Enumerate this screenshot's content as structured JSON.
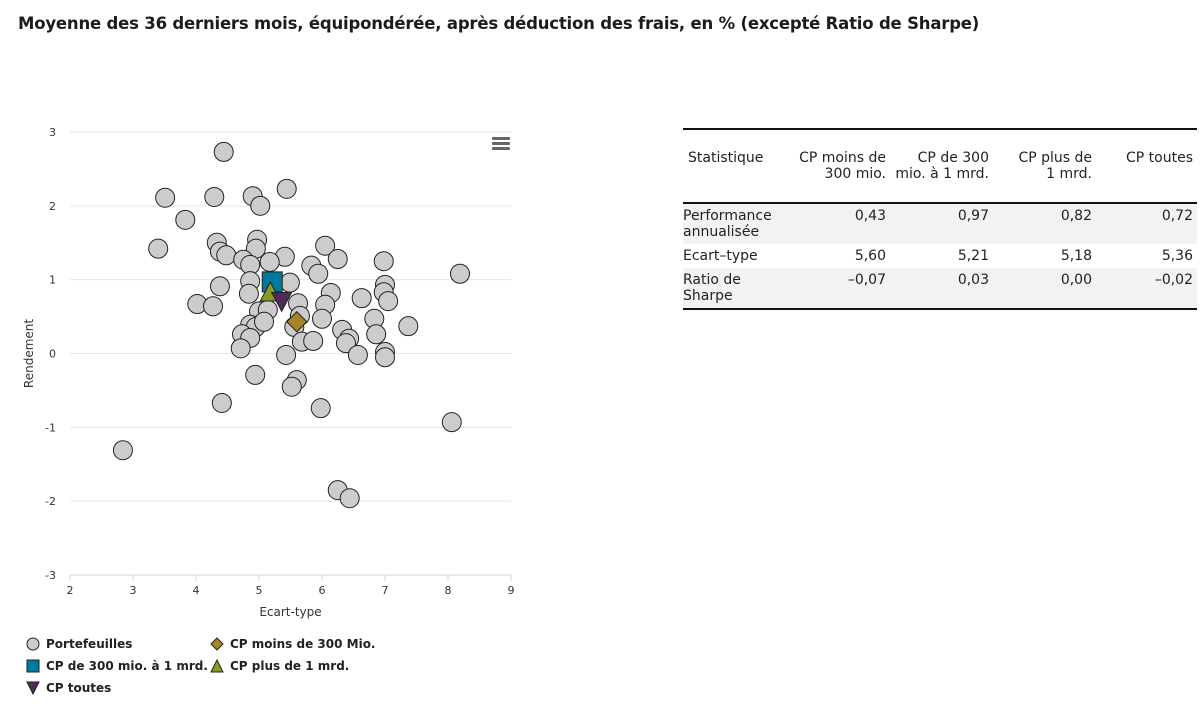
{
  "title": "Moyenne des 36 derniers mois, équipondérée, après déduction des frais, en % (excepté Ratio de Sharpe)",
  "chart_data": {
    "type": "scatter",
    "xlabel": "Ecart-type",
    "ylabel": "Rendement",
    "xlim": [
      2,
      9
    ],
    "ylim": [
      -3,
      3
    ],
    "xticks": [
      "2",
      "3",
      "4",
      "5",
      "6",
      "7",
      "8",
      "9"
    ],
    "yticks": [
      "3",
      "2",
      "1",
      "0",
      "-1",
      "-2",
      "-3"
    ],
    "grid": true,
    "legend_position": "bottom-left",
    "series": [
      {
        "name": "Portefeuilles",
        "marker": "circle",
        "color": "#cccccc",
        "points": [
          [
            4.44,
            2.73
          ],
          [
            3.51,
            2.11
          ],
          [
            4.29,
            2.12
          ],
          [
            4.9,
            2.13
          ],
          [
            5.44,
            2.23
          ],
          [
            5.02,
            2.0
          ],
          [
            3.83,
            1.81
          ],
          [
            3.4,
            1.42
          ],
          [
            4.33,
            1.5
          ],
          [
            4.97,
            1.54
          ],
          [
            4.38,
            1.38
          ],
          [
            4.48,
            1.33
          ],
          [
            4.95,
            1.42
          ],
          [
            4.75,
            1.27
          ],
          [
            5.41,
            1.31
          ],
          [
            6.05,
            1.46
          ],
          [
            6.25,
            1.28
          ],
          [
            5.17,
            1.24
          ],
          [
            4.86,
            1.2
          ],
          [
            5.83,
            1.19
          ],
          [
            5.94,
            1.08
          ],
          [
            6.98,
            1.25
          ],
          [
            8.19,
            1.08
          ],
          [
            4.86,
            0.98
          ],
          [
            5.49,
            0.96
          ],
          [
            4.38,
            0.91
          ],
          [
            4.02,
            0.67
          ],
          [
            4.27,
            0.64
          ],
          [
            4.84,
            0.81
          ],
          [
            7.0,
            0.93
          ],
          [
            6.98,
            0.83
          ],
          [
            6.14,
            0.82
          ],
          [
            6.63,
            0.75
          ],
          [
            7.05,
            0.71
          ],
          [
            6.05,
            0.66
          ],
          [
            5.62,
            0.68
          ],
          [
            5.0,
            0.57
          ],
          [
            5.14,
            0.59
          ],
          [
            5.65,
            0.51
          ],
          [
            6.83,
            0.47
          ],
          [
            6.0,
            0.47
          ],
          [
            7.37,
            0.37
          ],
          [
            4.86,
            0.39
          ],
          [
            4.95,
            0.36
          ],
          [
            5.08,
            0.43
          ],
          [
            5.56,
            0.36
          ],
          [
            6.32,
            0.32
          ],
          [
            6.43,
            0.2
          ],
          [
            4.73,
            0.26
          ],
          [
            4.86,
            0.21
          ],
          [
            6.86,
            0.26
          ],
          [
            5.68,
            0.16
          ],
          [
            5.86,
            0.17
          ],
          [
            6.38,
            0.14
          ],
          [
            4.71,
            0.07
          ],
          [
            6.57,
            -0.02
          ],
          [
            7.0,
            0.02
          ],
          [
            7.0,
            -0.05
          ],
          [
            5.43,
            -0.02
          ],
          [
            4.94,
            -0.29
          ],
          [
            5.6,
            -0.36
          ],
          [
            5.52,
            -0.45
          ],
          [
            4.41,
            -0.67
          ],
          [
            5.98,
            -0.74
          ],
          [
            8.06,
            -0.93
          ],
          [
            2.84,
            -1.31
          ],
          [
            6.25,
            -1.85
          ],
          [
            6.44,
            -1.96
          ]
        ]
      },
      {
        "name": "CP moins de 300 Mio.",
        "marker": "diamond",
        "color": "#a8842a",
        "points": [
          [
            5.6,
            0.43
          ]
        ]
      },
      {
        "name": "CP de 300 mio. à 1 mrd.",
        "marker": "square",
        "color": "#00799e",
        "points": [
          [
            5.21,
            0.97
          ]
        ]
      },
      {
        "name": "CP plus de 1 mrd.",
        "marker": "triangle",
        "color": "#8a9a22",
        "points": [
          [
            5.18,
            0.82
          ]
        ]
      },
      {
        "name": "CP toutes",
        "marker": "triangle-down",
        "color": "#4e2d5c",
        "points": [
          [
            5.36,
            0.72
          ]
        ]
      }
    ]
  },
  "legend": [
    "Portefeuilles",
    "CP moins de 300 Mio.",
    "CP de 300 mio. à 1 mrd.",
    "CP plus de 1 mrd.",
    "CP toutes"
  ],
  "table": {
    "headers": [
      "Statistique",
      "CP moins de\n300 mio.",
      "CP de 300\nmio. à 1 mrd.",
      "CP plus de\n1 mrd.",
      "CP toutes"
    ],
    "rows": [
      [
        "Performance\nannualisée",
        "0,43",
        "0,97",
        "0,82",
        "0,72"
      ],
      [
        "Ecart–type",
        "5,60",
        "5,21",
        "5,18",
        "5,36"
      ],
      [
        "Ratio de\nSharpe",
        "–0,07",
        "0,03",
        "0,00",
        "–0,02"
      ]
    ]
  }
}
